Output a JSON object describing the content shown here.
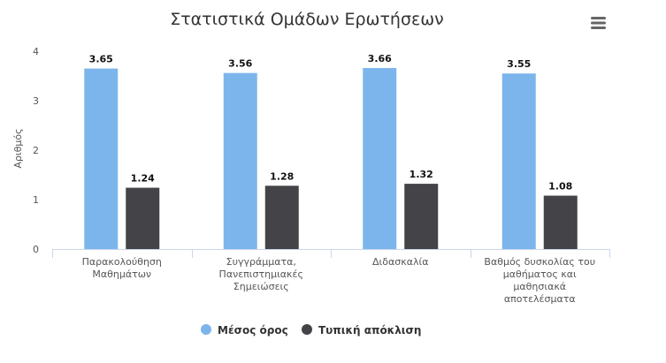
{
  "menu_icon": "hamburger-menu-icon",
  "chart_data": {
    "type": "bar",
    "title": "Στατιστικά Ομάδων Ερωτήσεων",
    "xlabel": "",
    "ylabel": "Αριθμός",
    "ylim": [
      0,
      4
    ],
    "yticks": [
      "0",
      "1",
      "2",
      "3",
      "4"
    ],
    "grid": false,
    "legend_position": "bottom-center",
    "categories": [
      [
        "Παρακολούθηση",
        "Μαθημάτων"
      ],
      [
        "Συγγράμματα,",
        "Πανεπιστημιακές",
        "Σημειώσεις"
      ],
      [
        "Διδασκαλία"
      ],
      [
        "Βαθμός δυσκολίας του",
        "μαθήματος και",
        "μαθησιακά",
        "αποτελέσματα"
      ]
    ],
    "series": [
      {
        "name": "Μέσος όρος",
        "color": "#7cb5ec",
        "values": [
          3.65,
          3.56,
          3.66,
          3.55
        ]
      },
      {
        "name": "Τυπική απόκλιση",
        "color": "#434348",
        "values": [
          1.24,
          1.28,
          1.32,
          1.08
        ]
      }
    ]
  }
}
